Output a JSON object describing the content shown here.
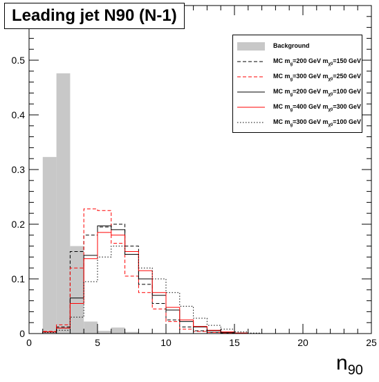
{
  "title": "Leading jet N90 (N-1)",
  "xlabel_main": "n",
  "xlabel_sub": "90",
  "chart_data": {
    "type": "histogram",
    "title": "Leading jet N90 (N-1)",
    "xlabel": "n90",
    "ylabel": "",
    "xlim": [
      0,
      25
    ],
    "ylim": [
      0,
      0.6
    ],
    "bin_width": 1,
    "x_ticks": [
      0,
      5,
      10,
      15,
      20,
      25
    ],
    "y_ticks": [
      0,
      0.1,
      0.2,
      0.3,
      0.4,
      0.5
    ],
    "grid": false,
    "legend_position": "top-right",
    "series": [
      {
        "name": "Background",
        "label_parts": [
          "Background"
        ],
        "style": "filled",
        "color": "#c8c8c8",
        "values": [
          0,
          0.323,
          0.476,
          0.16,
          0.022,
          0.005,
          0.011,
          0.003,
          0.001,
          0,
          0,
          0,
          0,
          0,
          0,
          0,
          0,
          0,
          0,
          0,
          0,
          0,
          0,
          0,
          0
        ]
      },
      {
        "name": "MC mg=200 GeV mχ0=150 GeV",
        "label_parts": [
          "MC m",
          "g",
          "=200 GeV m",
          "χ0",
          "=150 GeV"
        ],
        "style": "dashed",
        "color": "#000000",
        "values": [
          0,
          0.003,
          0.012,
          0.15,
          0.18,
          0.195,
          0.2,
          0.16,
          0.09,
          0.055,
          0.025,
          0.012,
          0.005,
          0.002,
          0.001,
          0,
          0,
          0,
          0,
          0,
          0,
          0,
          0,
          0,
          0
        ]
      },
      {
        "name": "MC mg=300 GeV mχ0=250 GeV",
        "label_parts": [
          "MC m",
          "g",
          "=300 GeV m",
          "χ0",
          "=250 GeV"
        ],
        "style": "dashed",
        "color": "#ff0000",
        "values": [
          0,
          0.004,
          0.016,
          0.12,
          0.228,
          0.225,
          0.165,
          0.105,
          0.075,
          0.045,
          0.022,
          0.008,
          0.004,
          0.002,
          0.001,
          0,
          0,
          0,
          0,
          0,
          0,
          0,
          0,
          0,
          0
        ]
      },
      {
        "name": "MC mg=200 GeV mχ0=100 GeV",
        "label_parts": [
          "MC m",
          "g",
          "=200 GeV m",
          "χ0",
          "=100 GeV"
        ],
        "style": "solid",
        "color": "#000000",
        "values": [
          0,
          0.003,
          0.01,
          0.065,
          0.143,
          0.197,
          0.19,
          0.145,
          0.1,
          0.07,
          0.043,
          0.022,
          0.012,
          0.005,
          0.002,
          0.001,
          0,
          0,
          0,
          0,
          0,
          0,
          0,
          0,
          0
        ]
      },
      {
        "name": "MC mg=400 GeV mχ0=300 GeV",
        "label_parts": [
          "MC m",
          "g",
          "=400 GeV m",
          "χ0",
          "=300 GeV"
        ],
        "style": "solid",
        "color": "#ff0000",
        "values": [
          0,
          0.003,
          0.01,
          0.055,
          0.137,
          0.185,
          0.18,
          0.15,
          0.115,
          0.075,
          0.048,
          0.025,
          0.013,
          0.006,
          0.003,
          0.001,
          0,
          0,
          0,
          0,
          0,
          0,
          0,
          0,
          0
        ]
      },
      {
        "name": "MC mg=300 GeV mχ0=100 GeV",
        "label_parts": [
          "MC m",
          "g",
          "=300 GeV m",
          "χ0",
          "=100 GeV"
        ],
        "style": "dotted",
        "color": "#000000",
        "values": [
          0,
          0.002,
          0.006,
          0.03,
          0.095,
          0.14,
          0.16,
          0.145,
          0.12,
          0.1,
          0.075,
          0.05,
          0.028,
          0.015,
          0.008,
          0.003,
          0.001,
          0,
          0,
          0,
          0,
          0,
          0,
          0,
          0
        ]
      }
    ]
  }
}
